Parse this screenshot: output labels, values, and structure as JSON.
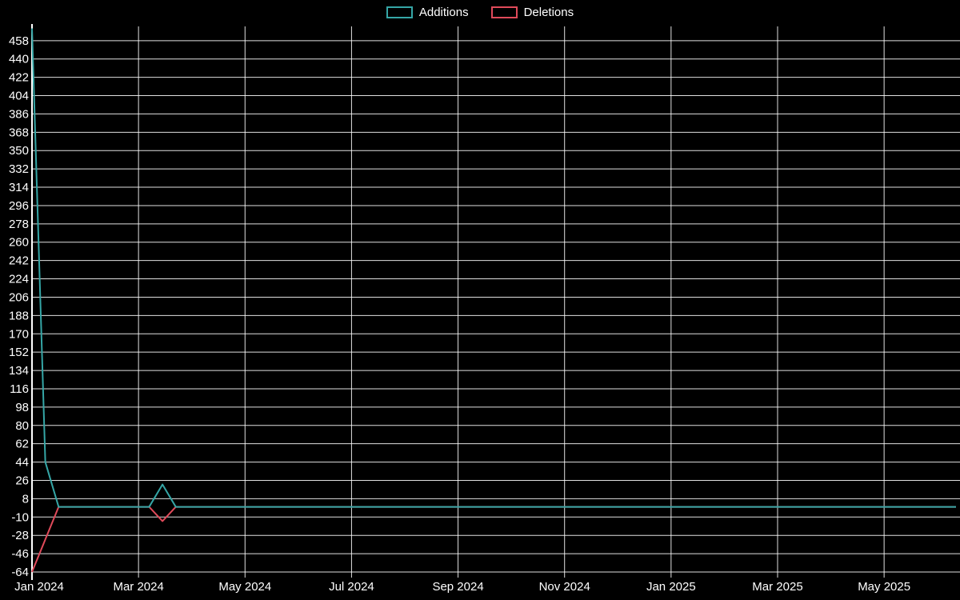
{
  "page": {
    "background_color": "#000000",
    "text_color": "#ffffff"
  },
  "chart_data": {
    "type": "line",
    "title": "",
    "xlabel": "",
    "ylabel": "",
    "legend_position": "top-center",
    "grid": true,
    "background_color": "#000000",
    "grid_color": "#ffffff",
    "tick_label_color": "#ffffff",
    "x_unit": "months since Jan 2024",
    "xlim": [
      0,
      17.35
    ],
    "ylim": [
      -64,
      472
    ],
    "x_ticks": [
      0,
      2,
      4,
      6,
      8,
      10,
      12,
      14,
      16
    ],
    "x_tick_labels": [
      "Jan 2024",
      "Mar 2024",
      "May 2024",
      "Jul 2024",
      "Sep 2024",
      "Nov 2024",
      "Jan 2025",
      "Mar 2025",
      "May 2025"
    ],
    "y_ticks": [
      -64,
      -46,
      -28,
      -10,
      8,
      26,
      44,
      62,
      80,
      98,
      116,
      134,
      152,
      170,
      188,
      206,
      224,
      242,
      260,
      278,
      296,
      314,
      332,
      350,
      368,
      386,
      404,
      422,
      440,
      458
    ],
    "series": [
      {
        "name": "Additions",
        "color": "#35a6a6",
        "x": [
          0,
          0.25,
          0.5,
          2.2,
          2.45,
          2.7,
          17.35
        ],
        "y": [
          470,
          44,
          0,
          0,
          22,
          0,
          0
        ]
      },
      {
        "name": "Deletions",
        "color": "#e04a5a",
        "x": [
          0,
          0.5,
          2.2,
          2.45,
          2.7,
          17.35
        ],
        "y": [
          -64,
          0,
          0,
          -14,
          0,
          0
        ]
      }
    ]
  }
}
